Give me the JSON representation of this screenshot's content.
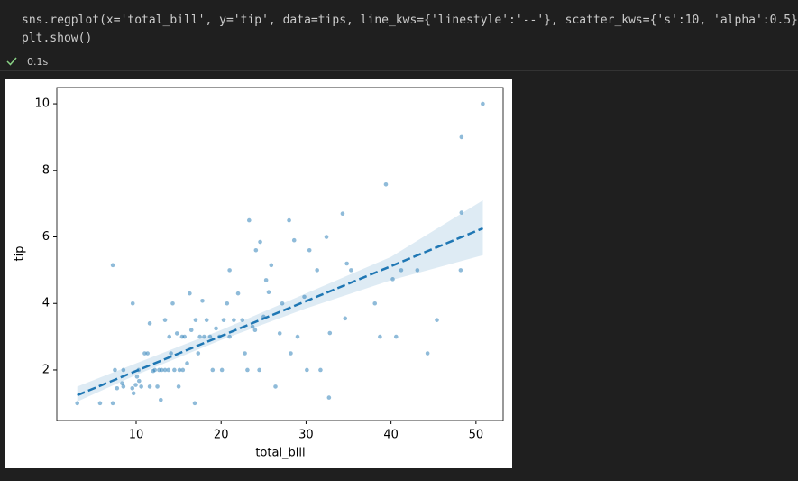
{
  "code": {
    "lines": [
      "sns.regplot(x='total_bill', y='tip', data=tips, line_kws={'linestyle':'--'}, scatter_kws={'s':10, 'alpha':0.5})",
      "plt.show()"
    ]
  },
  "status": {
    "time": "0.1s"
  },
  "chart_data": {
    "type": "scatter",
    "x_label": "total_bill",
    "y_label": "tip",
    "color": "#1f77b4",
    "x": [
      3.07,
      5.75,
      7.25,
      7.25,
      7.5,
      7.75,
      8.5,
      8.35,
      8.5,
      9.55,
      9.6,
      9.7,
      9.95,
      10.1,
      10.3,
      10.35,
      10.6,
      11.0,
      11.35,
      11.6,
      11.6,
      12.0,
      12.2,
      12.5,
      12.7,
      12.9,
      13.0,
      13.4,
      13.4,
      13.8,
      13.9,
      14.1,
      14.3,
      14.5,
      14.8,
      15.0,
      15.1,
      15.4,
      15.5,
      15.7,
      16.0,
      16.3,
      16.5,
      16.9,
      17.0,
      17.3,
      17.5,
      17.8,
      18.0,
      18.3,
      18.7,
      19.0,
      19.4,
      19.8,
      20.1,
      20.3,
      20.7,
      21.0,
      21.0,
      21.5,
      22.0,
      22.5,
      22.8,
      23.1,
      23.3,
      23.7,
      24.0,
      24.1,
      24.5,
      24.6,
      25.0,
      25.3,
      25.6,
      25.9,
      26.4,
      26.9,
      27.2,
      28.0,
      28.2,
      28.6,
      29.0,
      29.8,
      30.1,
      30.4,
      31.3,
      31.7,
      32.4,
      32.7,
      32.8,
      34.3,
      34.6,
      34.8,
      35.3,
      38.1,
      38.7,
      39.4,
      40.2,
      40.6,
      41.2,
      43.1,
      44.3,
      45.4,
      48.2,
      48.3,
      48.3,
      50.8
    ],
    "values": [
      1.0,
      1.0,
      1.0,
      5.15,
      2.0,
      1.45,
      1.5,
      1.6,
      2.0,
      1.45,
      4.0,
      1.3,
      1.55,
      1.8,
      2.0,
      1.67,
      1.5,
      2.5,
      2.5,
      1.5,
      3.4,
      1.97,
      2.0,
      1.5,
      2.0,
      1.1,
      2.0,
      3.5,
      2.0,
      2.0,
      3.0,
      2.5,
      4.0,
      2.0,
      3.1,
      1.5,
      2.0,
      3.0,
      2.0,
      3.0,
      2.2,
      4.3,
      3.2,
      1.0,
      3.5,
      2.5,
      3.0,
      4.08,
      3.0,
      3.5,
      3.0,
      2.0,
      3.25,
      3.0,
      2.0,
      3.5,
      4.0,
      3.0,
      5.0,
      3.5,
      4.3,
      3.5,
      2.5,
      2.0,
      6.5,
      3.3,
      3.2,
      5.6,
      2.0,
      5.85,
      3.6,
      4.7,
      4.34,
      5.15,
      1.5,
      3.1,
      4.0,
      6.5,
      2.5,
      5.9,
      3.0,
      4.2,
      2.0,
      5.6,
      5.0,
      2.0,
      6.0,
      1.17,
      3.11,
      6.7,
      3.55,
      5.2,
      5.0,
      4.0,
      3.0,
      7.58,
      4.73,
      3.0,
      5.0,
      5.0,
      2.5,
      3.5,
      5.0,
      6.73,
      9.0,
      10.0
    ],
    "regression": {
      "x": [
        3.07,
        10,
        20,
        30,
        40,
        50.81
      ],
      "y": [
        1.24,
        1.97,
        3.02,
        4.07,
        5.12,
        6.26
      ],
      "ci_lower": [
        1.05,
        1.85,
        2.9,
        3.85,
        4.7,
        5.45
      ],
      "ci_upper": [
        1.5,
        2.2,
        3.2,
        4.3,
        5.4,
        7.1
      ],
      "linestyle": "--"
    },
    "xlim": [
      0.66,
      53.2
    ],
    "ylim": [
      0.48,
      10.49
    ],
    "xticks": [
      10,
      20,
      30,
      40,
      50
    ],
    "yticks": [
      2,
      4,
      6,
      8,
      10
    ]
  }
}
